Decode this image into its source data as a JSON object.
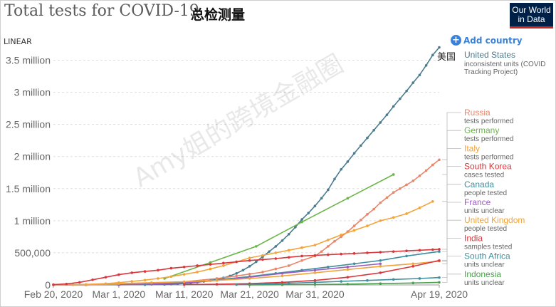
{
  "header": {
    "title": "Total tests for COVID-19",
    "title_cn": "总检测量",
    "logo_line1": "Our World",
    "logo_line2": "in Data",
    "scale_toggle": "LINEAR",
    "add_country": "Add country",
    "watermark": "Amy姐的跨境金融圈"
  },
  "annotation_us_cn": "美国",
  "colors": {
    "us": "#4a7b8e",
    "russia": "#e8866a",
    "germany": "#6ab548",
    "italy": "#f2a339",
    "south_korea": "#d8373c",
    "canada": "#3f8f9f",
    "france": "#9c5bc2",
    "uk": "#f2a339",
    "india": "#d8373c",
    "south_africa": "#3f8f9f",
    "indonesia": "#4aa04a"
  },
  "chart_data": {
    "type": "line",
    "title": "Total tests for COVID-19",
    "x_start": "Feb 20, 2020",
    "x_ticks": [
      "Feb 20, 2020",
      "Mar 1, 2020",
      "Mar 11, 2020",
      "Mar 21, 2020",
      "Mar 31, 2020",
      "Apr 19, 2020"
    ],
    "x_tick_days": [
      0,
      10,
      20,
      30,
      40,
      59
    ],
    "xlim": [
      0,
      59
    ],
    "y_ticks": [
      "0",
      "500,000",
      "1 million",
      "1.5 million",
      "2 million",
      "2.5 million",
      "3 million",
      "3.5 million"
    ],
    "y_tick_values": [
      0,
      500000,
      1000000,
      1500000,
      2000000,
      2500000,
      3000000,
      3500000
    ],
    "ylim": [
      0,
      3750000
    ],
    "grid": true,
    "series": [
      {
        "key": "us",
        "name": "United States",
        "note1": "inconsistent units (COVID",
        "note2": "Tracking Project)",
        "dashes": false,
        "x": [
          0,
          5,
          10,
          14,
          17,
          18,
          19,
          20,
          21,
          22,
          23,
          24,
          25,
          26,
          27,
          28,
          29,
          30,
          31,
          32,
          33,
          34,
          35,
          36,
          37,
          38,
          39,
          40,
          41,
          42,
          43,
          44,
          45,
          46,
          47,
          48,
          49,
          50,
          51,
          52,
          53,
          54,
          55,
          56,
          57,
          58,
          59
        ],
        "y": [
          0,
          1000,
          2000,
          4000,
          8000,
          12000,
          16000,
          22000,
          30000,
          40000,
          55000,
          70000,
          90000,
          110000,
          140000,
          180000,
          230000,
          290000,
          360000,
          440000,
          520000,
          600000,
          690000,
          790000,
          900000,
          1020000,
          1120000,
          1230000,
          1350000,
          1480000,
          1650000,
          1800000,
          1920000,
          2050000,
          2170000,
          2290000,
          2410000,
          2530000,
          2650000,
          2780000,
          2900000,
          3020000,
          3150000,
          3270000,
          3420000,
          3580000,
          3700000
        ]
      },
      {
        "key": "russia",
        "name": "Russia",
        "note1": "tests performed",
        "dashes": false,
        "x": [
          0,
          5,
          10,
          15,
          20,
          25,
          28,
          30,
          32,
          34,
          36,
          38,
          40,
          41,
          42,
          43,
          44,
          45,
          46,
          47,
          48,
          49,
          50,
          51,
          52,
          53,
          54,
          55,
          56,
          57,
          58,
          59
        ],
        "y": [
          0,
          2000,
          8000,
          20000,
          50000,
          100000,
          140000,
          170000,
          200000,
          250000,
          300000,
          380000,
          450000,
          520000,
          600000,
          680000,
          750000,
          830000,
          920000,
          1010000,
          1100000,
          1180000,
          1280000,
          1360000,
          1440000,
          1500000,
          1560000,
          1620000,
          1700000,
          1780000,
          1870000,
          1950000
        ]
      },
      {
        "key": "germany",
        "name": "Germany",
        "note1": "tests performed",
        "dashes": false,
        "x": [
          17,
          24,
          31,
          38,
          45,
          52
        ],
        "y": [
          100000,
          350000,
          600000,
          980000,
          1350000,
          1720000
        ]
      },
      {
        "key": "italy",
        "name": "Italy",
        "note1": "tests performed",
        "dashes": false,
        "x": [
          3,
          5,
          8,
          10,
          12,
          14,
          16,
          18,
          20,
          22,
          24,
          26,
          28,
          30,
          32,
          34,
          36,
          38,
          40,
          42,
          44,
          46,
          48,
          50,
          52,
          54,
          56,
          58
        ],
        "y": [
          3000,
          8000,
          20000,
          35000,
          55000,
          75000,
          100000,
          130000,
          165000,
          200000,
          250000,
          300000,
          360000,
          420000,
          460000,
          500000,
          540000,
          580000,
          620000,
          700000,
          780000,
          850000,
          920000,
          1000000,
          1050000,
          1110000,
          1200000,
          1300000
        ]
      },
      {
        "key": "south_korea",
        "name": "South Korea",
        "note1": "cases tested",
        "dashes": false,
        "x": [
          0,
          2,
          4,
          6,
          8,
          10,
          12,
          14,
          16,
          18,
          20,
          22,
          24,
          26,
          28,
          30,
          32,
          34,
          36,
          38,
          40,
          42,
          44,
          46,
          48,
          50,
          52,
          54,
          56,
          58,
          59
        ],
        "y": [
          5000,
          15000,
          40000,
          80000,
          120000,
          160000,
          190000,
          210000,
          230000,
          260000,
          280000,
          300000,
          320000,
          340000,
          360000,
          380000,
          395000,
          410000,
          430000,
          450000,
          460000,
          470000,
          480000,
          490000,
          500000,
          510000,
          520000,
          530000,
          540000,
          550000,
          555000
        ]
      },
      {
        "key": "canada",
        "name": "Canada",
        "note1": "people tested",
        "dashes": false,
        "x": [
          10,
          14,
          18,
          22,
          26,
          30,
          34,
          38,
          42,
          46,
          50,
          54,
          59
        ],
        "y": [
          2000,
          10000,
          25000,
          50000,
          90000,
          130000,
          180000,
          230000,
          280000,
          330000,
          380000,
          450000,
          520000
        ]
      },
      {
        "key": "france",
        "name": "France",
        "note1": "units unclear",
        "dashes": false,
        "x": [
          10,
          15,
          20,
          25,
          30,
          35,
          40,
          45,
          50
        ],
        "y": [
          3000,
          10000,
          30000,
          70000,
          120000,
          180000,
          230000,
          280000,
          330000
        ]
      },
      {
        "key": "uk",
        "name": "United Kingdom",
        "note1": "people tested",
        "dashes": false,
        "x": [
          5,
          10,
          15,
          20,
          25,
          30,
          35,
          40,
          45,
          50,
          55,
          59
        ],
        "y": [
          8000,
          20000,
          35000,
          50000,
          70000,
          100000,
          140000,
          190000,
          240000,
          290000,
          330000,
          370000
        ]
      },
      {
        "key": "india",
        "name": "India",
        "note1": "samples tested",
        "dashes": false,
        "x": [
          20,
          25,
          30,
          35,
          40,
          45,
          50,
          55,
          59
        ],
        "y": [
          5000,
          10000,
          20000,
          40000,
          70000,
          120000,
          190000,
          290000,
          380000
        ]
      },
      {
        "key": "south_africa",
        "name": "South Africa",
        "note1": "units unclear",
        "dashes": false,
        "x": [
          28,
          32,
          36,
          40,
          44,
          48,
          52,
          56,
          59
        ],
        "y": [
          5000,
          12000,
          25000,
          40000,
          55000,
          70000,
          85000,
          100000,
          115000
        ]
      },
      {
        "key": "indonesia",
        "name": "Indonesia",
        "note1": "units unclear",
        "dashes": false,
        "x": [
          30,
          35,
          40,
          45,
          50,
          55,
          59
        ],
        "y": [
          1000,
          3000,
          6000,
          12000,
          20000,
          30000,
          40000
        ]
      }
    ]
  }
}
